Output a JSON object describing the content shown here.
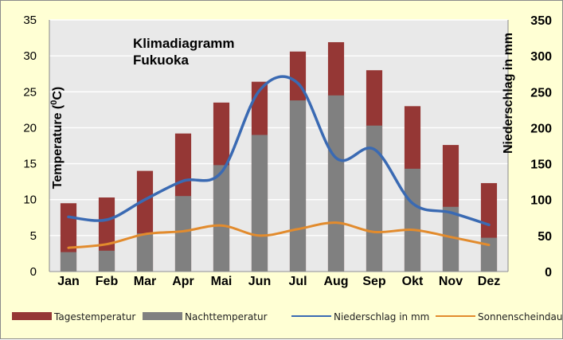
{
  "chart_data": {
    "type": "bar",
    "title": [
      "Klimadiagramm",
      "Fukuoka"
    ],
    "categories": [
      "Jan",
      "Feb",
      "Mar",
      "Apr",
      "Mai",
      "Jun",
      "Jul",
      "Aug",
      "Sep",
      "Okt",
      "Nov",
      "Dez"
    ],
    "y_left": {
      "label_prefix": "Temperature (",
      "label_sup": "0",
      "label_suffix": "C)",
      "min": 0,
      "max": 35,
      "step": 5
    },
    "y_right": {
      "label": "Niederschlag in mm",
      "min": 0,
      "max": 350,
      "step": 50
    },
    "grid": true,
    "legend_position": "bottom",
    "series": [
      {
        "name": "Tagestemperatur",
        "type": "bar",
        "axis": "left",
        "color": "#953735",
        "values": [
          9.5,
          10.3,
          14,
          19.2,
          23.5,
          26.4,
          30.6,
          31.9,
          28,
          23,
          17.6,
          12.3
        ]
      },
      {
        "name": "Nachttemperatur",
        "type": "bar",
        "axis": "left",
        "color": "#808080",
        "values": [
          2.7,
          2.9,
          5.3,
          10.5,
          14.8,
          19,
          23.8,
          24.5,
          20.3,
          14.3,
          9,
          4.7
        ]
      },
      {
        "name": "Niederschlag in mm",
        "type": "line",
        "axis": "right",
        "color": "#3a6ab3",
        "values": [
          76,
          72,
          100,
          126,
          138,
          252,
          262,
          158,
          170,
          95,
          82,
          65
        ]
      },
      {
        "name": "Sonnenscheindauer",
        "type": "line",
        "axis": "right",
        "color": "#e28b2d",
        "values": [
          33,
          38,
          52,
          56,
          64,
          50,
          59,
          68,
          55,
          58,
          48,
          37
        ]
      }
    ]
  }
}
